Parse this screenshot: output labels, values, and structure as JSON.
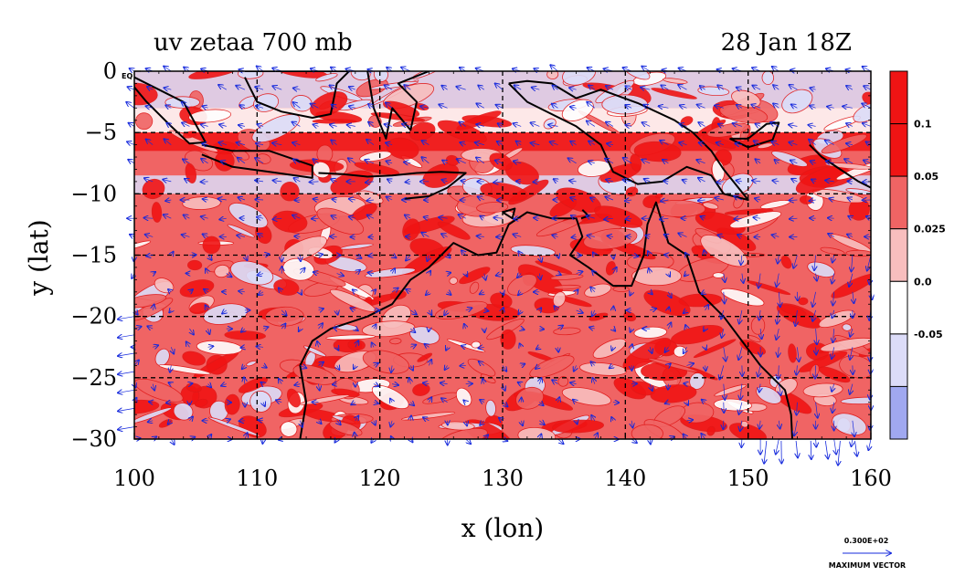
{
  "chart_data": {
    "type": "heatmap",
    "title_left": "uv zetaa 700 mb",
    "title_right": "28 Jan 18Z",
    "xlabel": "x (lon)",
    "ylabel": "y (lat)",
    "xlim": [
      100,
      160
    ],
    "ylim": [
      -30,
      0
    ],
    "x_ticks": [
      {
        "value": 100,
        "label": "100"
      },
      {
        "value": 110,
        "label": "110"
      },
      {
        "value": 120,
        "label": "120"
      },
      {
        "value": 130,
        "label": "130"
      },
      {
        "value": 140,
        "label": "140"
      },
      {
        "value": 150,
        "label": "150"
      },
      {
        "value": 160,
        "label": "160"
      }
    ],
    "y_ticks": [
      {
        "value": 0,
        "label": "0"
      },
      {
        "value": -5,
        "label": "−5"
      },
      {
        "value": -10,
        "label": "−10"
      },
      {
        "value": -15,
        "label": "−15"
      },
      {
        "value": -20,
        "label": "−20"
      },
      {
        "value": -25,
        "label": "−25"
      },
      {
        "value": -30,
        "label": "−30"
      }
    ],
    "eq_label": "EQ",
    "grid": true,
    "colorbar": {
      "levels": [
        {
          "label": "0.1",
          "color": "#f01414"
        },
        {
          "label": "0.05",
          "color": "#f06464"
        },
        {
          "label": "0.025",
          "color": "#f8bebe"
        },
        {
          "label": "0.0",
          "color": "#ffffff"
        },
        {
          "label": "-0.05",
          "color": "#dcdcf8"
        }
      ],
      "top_color": "#f01414",
      "bottom_color": "#a0a8f0"
    },
    "vector_scale": {
      "value": "0.300E+02",
      "label": "MAXIMUM VECTOR"
    },
    "vector_color": "#1428dc",
    "coastline_color": "#000000"
  }
}
